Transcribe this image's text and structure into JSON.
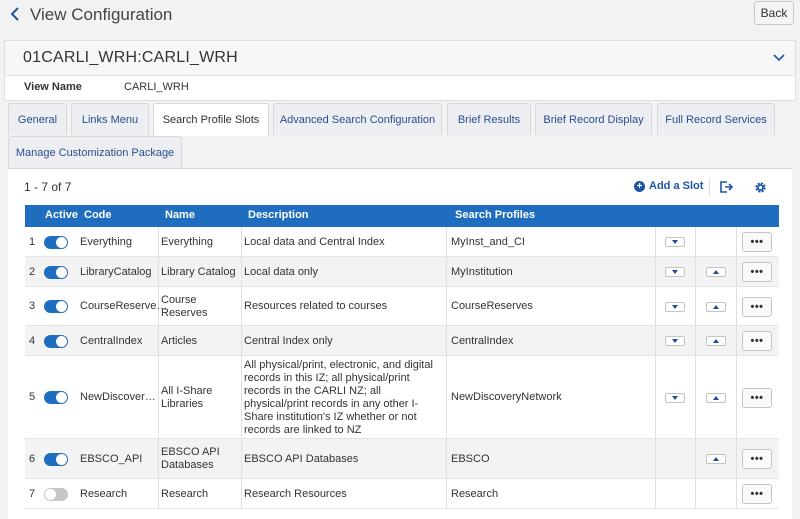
{
  "header": {
    "title": "View Configuration",
    "back_label": "Back"
  },
  "card": {
    "heading": "01CARLI_WRH:CARLI_WRH",
    "field_label": "View Name",
    "field_value": "CARLI_WRH"
  },
  "tabs": [
    {
      "label": "General"
    },
    {
      "label": "Links Menu"
    },
    {
      "label": "Search Profile Slots"
    },
    {
      "label": "Advanced Search Configuration"
    },
    {
      "label": "Brief Results"
    },
    {
      "label": "Brief Record Display"
    },
    {
      "label": "Full Record Services"
    },
    {
      "label": "Manage Customization Package"
    }
  ],
  "active_tab": "Search Profile Slots",
  "toolbar": {
    "count": "1 - 7 of 7",
    "add_label": "Add a Slot"
  },
  "table": {
    "headers": {
      "active": "Active",
      "code": "Code",
      "name": "Name",
      "description": "Description",
      "profiles": "Search Profiles"
    },
    "rows": [
      {
        "num": "1",
        "active": true,
        "code": "Everything",
        "name": "Everything",
        "description": "Local data and Central Index",
        "profiles": "MyInst_and_CI"
      },
      {
        "num": "2",
        "active": true,
        "code": "LibraryCatalog",
        "name": "Library Catalog",
        "description": "Local data only",
        "profiles": "MyInstitution"
      },
      {
        "num": "3",
        "active": true,
        "code": "CourseReserve…",
        "name": "Course Reserves",
        "description": "Resources related to courses",
        "profiles": "CourseReserves"
      },
      {
        "num": "4",
        "active": true,
        "code": "CentralIndex",
        "name": "Articles",
        "description": "Central Index only",
        "profiles": "CentralIndex"
      },
      {
        "num": "5",
        "active": true,
        "code": "NewDiscover…",
        "name": "All I-Share Libraries",
        "description": "All physical/print, electronic, and digital records in this IZ; all physical/print records in the CARLI NZ; all physical/print records in any other I-Share institution's IZ whether or not records are linked to NZ",
        "profiles": "NewDiscoveryNetwork"
      },
      {
        "num": "6",
        "active": true,
        "code": "EBSCO_API",
        "name": "EBSCO API Databases",
        "description": "EBSCO API Databases",
        "profiles": "EBSCO"
      },
      {
        "num": "7",
        "active": false,
        "code": "Research",
        "name": "Research",
        "description": "Research Resources",
        "profiles": "Research"
      }
    ],
    "more_label": "•••"
  },
  "colors": {
    "accent": "#1f6dbf",
    "link": "#1b55a3",
    "toggle_off": "#c6c6c6"
  }
}
